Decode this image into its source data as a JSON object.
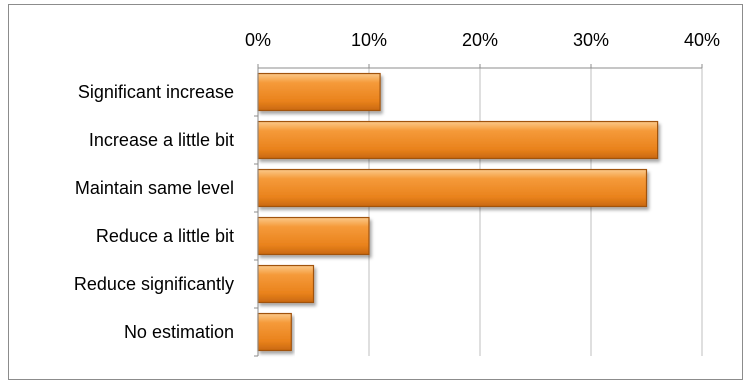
{
  "chart_data": {
    "type": "bar",
    "orientation": "horizontal",
    "categories": [
      "Significant increase",
      "Increase a little bit",
      "Maintain same level",
      "Reduce a little bit",
      "Reduce significantly",
      "No estimation"
    ],
    "values": [
      11,
      36,
      35,
      10,
      5,
      3
    ],
    "value_unit": "%",
    "xlim": [
      0,
      40
    ],
    "x_ticks": [
      "0%",
      "10%",
      "20%",
      "30%",
      "40%"
    ],
    "x_axis_position": "top",
    "grid": true,
    "legend": "none",
    "bar_color": "#f08a1c",
    "bar_edge_color": "#a0520c",
    "title": "",
    "xlabel": "",
    "ylabel": ""
  }
}
